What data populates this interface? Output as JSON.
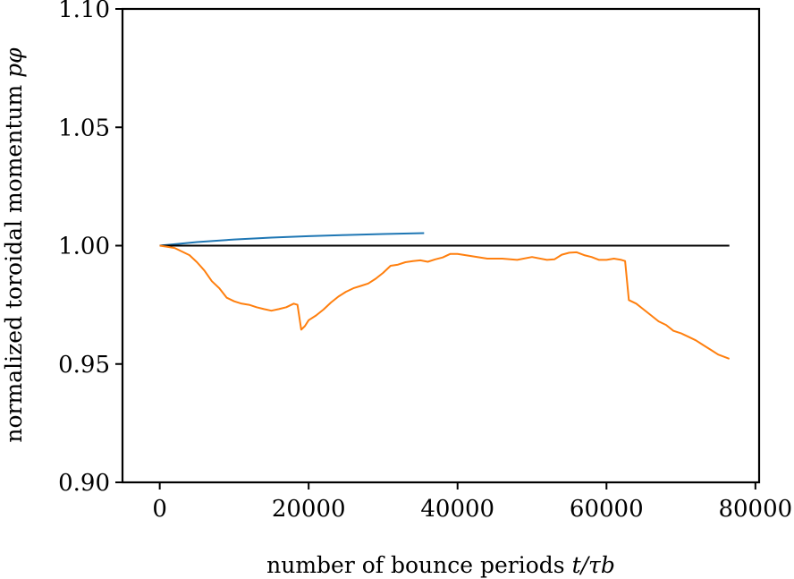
{
  "chart_data": {
    "type": "line",
    "xlabel": "number of bounce periods",
    "xlabel_math": "t/τb",
    "ylabel": "normalized toroidal momentum",
    "ylabel_math": "pφ",
    "xlim": [
      -5000,
      80500
    ],
    "ylim": [
      0.9,
      1.1
    ],
    "xticks": [
      "0",
      "20000",
      "40000",
      "60000",
      "80000"
    ],
    "yticks": [
      "0.90",
      "0.95",
      "1.00",
      "1.05",
      "1.10"
    ],
    "grid": false,
    "legend": "none",
    "series": [
      {
        "color": "#1f77b4",
        "x": [
          0,
          5000,
          10000,
          15000,
          20000,
          25000,
          30000,
          35500
        ],
        "y": [
          1.0,
          1.0015,
          1.0026,
          1.0034,
          1.004,
          1.0045,
          1.0049,
          1.0053
        ]
      },
      {
        "color": "#000000",
        "x": [
          0,
          76500
        ],
        "y": [
          1.0,
          1.0
        ]
      },
      {
        "color": "#ff7f0e",
        "x": [
          0,
          1000,
          2000,
          3000,
          4000,
          5000,
          6000,
          7000,
          8000,
          9000,
          10000,
          11000,
          12000,
          13000,
          14000,
          15000,
          16000,
          17000,
          18000,
          18500,
          19000,
          19500,
          20000,
          21000,
          22000,
          23000,
          24000,
          25000,
          26000,
          27000,
          28000,
          29000,
          30000,
          31000,
          32000,
          33000,
          34000,
          35000,
          36000,
          37000,
          38000,
          39000,
          40000,
          42000,
          44000,
          46000,
          48000,
          50000,
          52000,
          53000,
          54000,
          55000,
          56000,
          57000,
          58000,
          59000,
          60000,
          61000,
          62000,
          62500,
          63000,
          64000,
          65000,
          66000,
          67000,
          68000,
          69000,
          70000,
          71000,
          72000,
          73000,
          74000,
          75000,
          76000,
          76500
        ],
        "y": [
          1.0,
          0.9995,
          0.999,
          0.9975,
          0.996,
          0.993,
          0.9895,
          0.985,
          0.982,
          0.978,
          0.9765,
          0.9755,
          0.975,
          0.974,
          0.9732,
          0.9725,
          0.9732,
          0.974,
          0.9755,
          0.975,
          0.9645,
          0.966,
          0.9685,
          0.9705,
          0.973,
          0.976,
          0.9785,
          0.9805,
          0.982,
          0.983,
          0.984,
          0.986,
          0.9885,
          0.9915,
          0.992,
          0.993,
          0.9935,
          0.9938,
          0.9932,
          0.9942,
          0.995,
          0.9965,
          0.9965,
          0.9955,
          0.9945,
          0.9945,
          0.994,
          0.9952,
          0.994,
          0.9942,
          0.9962,
          0.997,
          0.9972,
          0.996,
          0.9952,
          0.994,
          0.994,
          0.9945,
          0.994,
          0.9935,
          0.977,
          0.9755,
          0.973,
          0.9705,
          0.968,
          0.9665,
          0.964,
          0.963,
          0.9615,
          0.96,
          0.958,
          0.956,
          0.954,
          0.9528,
          0.9522
        ]
      }
    ]
  }
}
